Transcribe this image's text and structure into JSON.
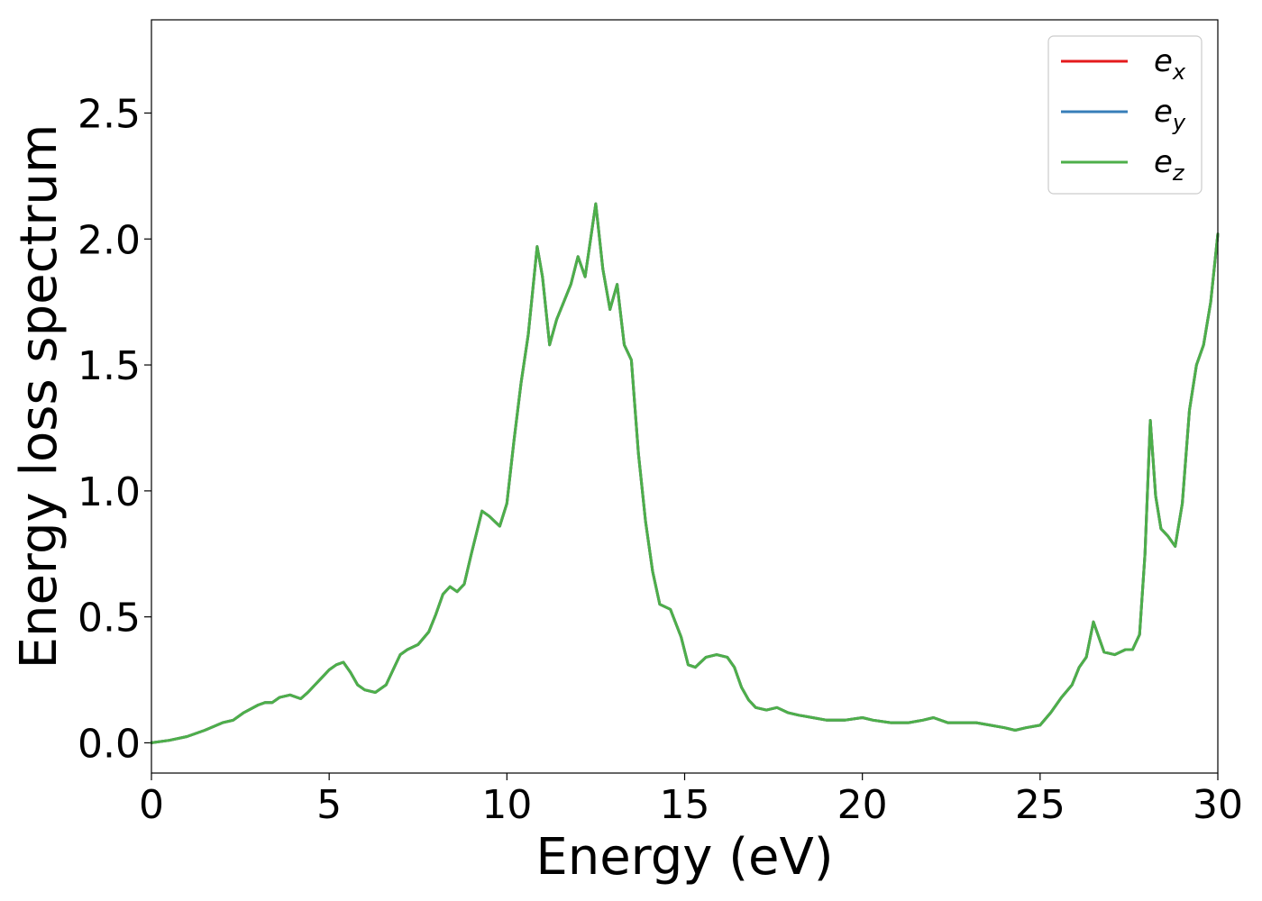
{
  "chart_data": {
    "type": "line",
    "xlabel": "Energy (eV)",
    "ylabel": "Energy loss spectrum",
    "xlim": [
      0,
      30
    ],
    "ylim": [
      -0.12,
      2.87
    ],
    "xticks": [
      0,
      5,
      10,
      15,
      20,
      25,
      30
    ],
    "xtick_labels": [
      "0",
      "5",
      "10",
      "15",
      "20",
      "25",
      "30"
    ],
    "yticks": [
      0.0,
      0.5,
      1.0,
      1.5,
      2.0,
      2.5
    ],
    "ytick_labels": [
      "0.0",
      "0.5",
      "1.0",
      "1.5",
      "2.0",
      "2.5"
    ],
    "grid": false,
    "legend_position": "top-right",
    "x": [
      0,
      0.5,
      1.0,
      1.5,
      2.0,
      2.3,
      2.6,
      3.0,
      3.2,
      3.4,
      3.6,
      3.9,
      4.2,
      4.4,
      4.6,
      4.8,
      5.0,
      5.2,
      5.4,
      5.6,
      5.8,
      6.0,
      6.3,
      6.6,
      6.8,
      7.0,
      7.2,
      7.5,
      7.8,
      8.0,
      8.2,
      8.4,
      8.6,
      8.8,
      9.0,
      9.3,
      9.5,
      9.8,
      10.0,
      10.2,
      10.4,
      10.6,
      10.85,
      11.0,
      11.2,
      11.4,
      11.6,
      11.8,
      12.0,
      12.2,
      12.5,
      12.7,
      12.9,
      13.1,
      13.3,
      13.5,
      13.7,
      13.9,
      14.1,
      14.3,
      14.6,
      14.9,
      15.1,
      15.3,
      15.6,
      15.9,
      16.2,
      16.4,
      16.6,
      16.8,
      17.0,
      17.3,
      17.6,
      17.9,
      18.2,
      18.6,
      19.0,
      19.5,
      20.0,
      20.3,
      20.8,
      21.3,
      21.7,
      22.0,
      22.4,
      22.8,
      23.2,
      23.6,
      24.0,
      24.3,
      24.6,
      25.0,
      25.3,
      25.6,
      25.9,
      26.1,
      26.3,
      26.5,
      26.8,
      27.1,
      27.4,
      27.6,
      27.8,
      27.95,
      28.1,
      28.25,
      28.4,
      28.6,
      28.8,
      29.0,
      29.2,
      29.4,
      29.6,
      29.8,
      30.0
    ],
    "series": [
      {
        "name": "e_x",
        "color": "#e41a1c",
        "values": [
          0.0,
          0.01,
          0.025,
          0.05,
          0.08,
          0.09,
          0.12,
          0.15,
          0.16,
          0.16,
          0.18,
          0.19,
          0.175,
          0.2,
          0.23,
          0.26,
          0.29,
          0.31,
          0.32,
          0.28,
          0.23,
          0.21,
          0.2,
          0.23,
          0.29,
          0.35,
          0.37,
          0.39,
          0.44,
          0.51,
          0.59,
          0.62,
          0.6,
          0.63,
          0.75,
          0.92,
          0.9,
          0.86,
          0.95,
          1.2,
          1.43,
          1.62,
          1.97,
          1.85,
          1.58,
          1.68,
          1.75,
          1.82,
          1.93,
          1.85,
          2.14,
          1.88,
          1.72,
          1.82,
          1.58,
          1.52,
          1.15,
          0.88,
          0.68,
          0.55,
          0.53,
          0.42,
          0.31,
          0.3,
          0.34,
          0.35,
          0.34,
          0.3,
          0.22,
          0.17,
          0.14,
          0.13,
          0.14,
          0.12,
          0.11,
          0.1,
          0.09,
          0.09,
          0.1,
          0.09,
          0.08,
          0.08,
          0.09,
          0.1,
          0.08,
          0.08,
          0.08,
          0.07,
          0.06,
          0.05,
          0.06,
          0.07,
          0.12,
          0.18,
          0.23,
          0.3,
          0.34,
          0.48,
          0.36,
          0.35,
          0.37,
          0.37,
          0.43,
          0.75,
          1.28,
          0.98,
          0.85,
          0.82,
          0.78,
          0.95,
          1.32,
          1.5,
          1.58,
          1.75,
          2.02
        ]
      },
      {
        "name": "e_y",
        "color": "#377eb8",
        "values": [
          0.0,
          0.01,
          0.025,
          0.05,
          0.08,
          0.09,
          0.12,
          0.15,
          0.16,
          0.16,
          0.18,
          0.19,
          0.175,
          0.2,
          0.23,
          0.26,
          0.29,
          0.31,
          0.32,
          0.28,
          0.23,
          0.21,
          0.2,
          0.23,
          0.29,
          0.35,
          0.37,
          0.39,
          0.44,
          0.51,
          0.59,
          0.62,
          0.6,
          0.63,
          0.75,
          0.92,
          0.9,
          0.86,
          0.95,
          1.2,
          1.43,
          1.62,
          1.97,
          1.85,
          1.58,
          1.68,
          1.75,
          1.82,
          1.93,
          1.85,
          2.14,
          1.88,
          1.72,
          1.82,
          1.58,
          1.52,
          1.15,
          0.88,
          0.68,
          0.55,
          0.53,
          0.42,
          0.31,
          0.3,
          0.34,
          0.35,
          0.34,
          0.3,
          0.22,
          0.17,
          0.14,
          0.13,
          0.14,
          0.12,
          0.11,
          0.1,
          0.09,
          0.09,
          0.1,
          0.09,
          0.08,
          0.08,
          0.09,
          0.1,
          0.08,
          0.08,
          0.08,
          0.07,
          0.06,
          0.05,
          0.06,
          0.07,
          0.12,
          0.18,
          0.23,
          0.3,
          0.34,
          0.48,
          0.36,
          0.35,
          0.37,
          0.37,
          0.43,
          0.75,
          1.28,
          0.98,
          0.85,
          0.82,
          0.78,
          0.95,
          1.32,
          1.5,
          1.58,
          1.75,
          2.02
        ]
      },
      {
        "name": "e_z",
        "color": "#4daf4a",
        "values": [
          0.0,
          0.01,
          0.025,
          0.05,
          0.08,
          0.09,
          0.12,
          0.15,
          0.16,
          0.16,
          0.18,
          0.19,
          0.175,
          0.2,
          0.23,
          0.26,
          0.29,
          0.31,
          0.32,
          0.28,
          0.23,
          0.21,
          0.2,
          0.23,
          0.29,
          0.35,
          0.37,
          0.39,
          0.44,
          0.51,
          0.59,
          0.62,
          0.6,
          0.63,
          0.75,
          0.92,
          0.9,
          0.86,
          0.95,
          1.2,
          1.43,
          1.62,
          1.97,
          1.85,
          1.58,
          1.68,
          1.75,
          1.82,
          1.93,
          1.85,
          2.14,
          1.88,
          1.72,
          1.82,
          1.58,
          1.52,
          1.15,
          0.88,
          0.68,
          0.55,
          0.53,
          0.42,
          0.31,
          0.3,
          0.34,
          0.35,
          0.34,
          0.3,
          0.22,
          0.17,
          0.14,
          0.13,
          0.14,
          0.12,
          0.11,
          0.1,
          0.09,
          0.09,
          0.1,
          0.09,
          0.08,
          0.08,
          0.09,
          0.1,
          0.08,
          0.08,
          0.08,
          0.07,
          0.06,
          0.05,
          0.06,
          0.07,
          0.12,
          0.18,
          0.23,
          0.3,
          0.34,
          0.48,
          0.36,
          0.35,
          0.37,
          0.37,
          0.43,
          0.75,
          1.28,
          0.98,
          0.85,
          0.82,
          0.78,
          0.95,
          1.32,
          1.5,
          1.58,
          1.75,
          2.02
        ]
      }
    ],
    "legend": [
      {
        "base": "e",
        "sub": "x",
        "color": "#e41a1c"
      },
      {
        "base": "e",
        "sub": "y",
        "color": "#377eb8"
      },
      {
        "base": "e",
        "sub": "z",
        "color": "#4daf4a"
      }
    ]
  }
}
